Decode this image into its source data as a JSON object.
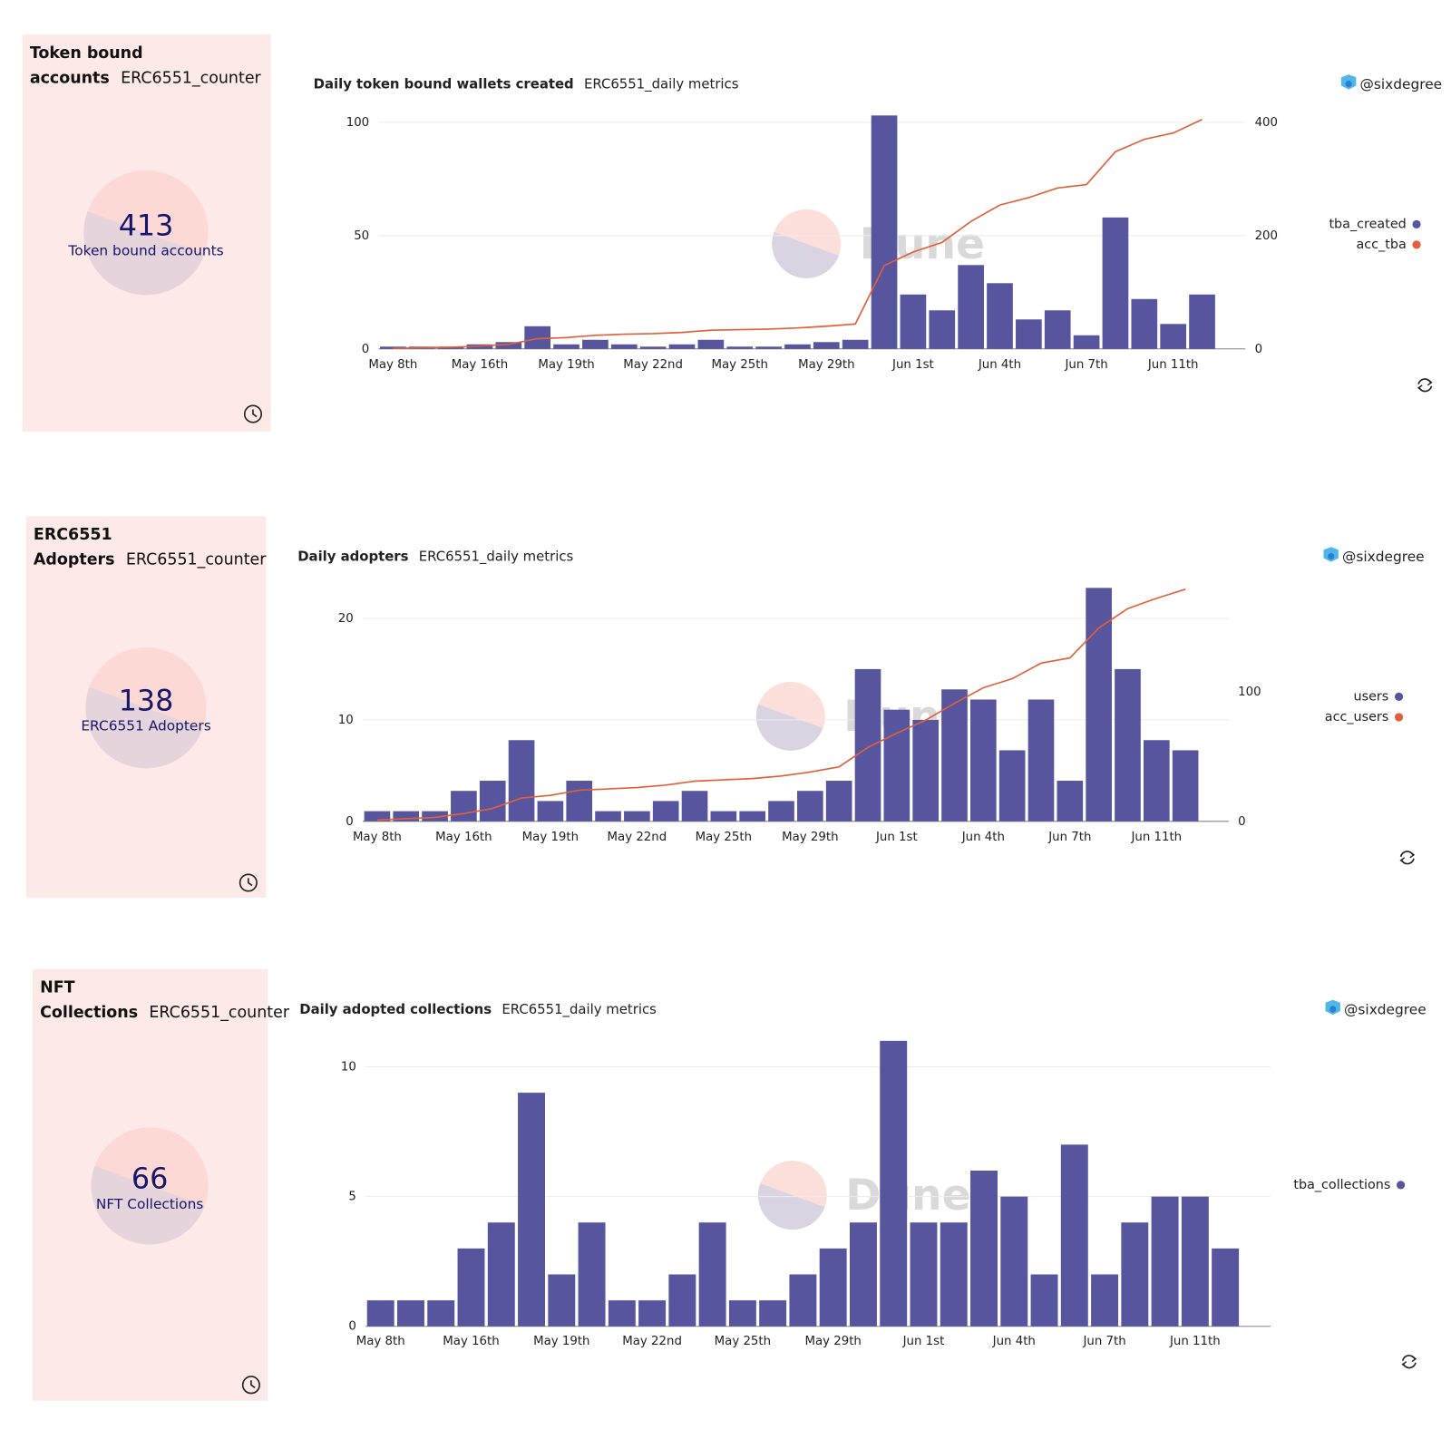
{
  "watermark": "Dune",
  "panels": [
    {
      "counter": {
        "title": "Token bound accounts",
        "query": "ERC6551_counter",
        "value": 413,
        "label": "Token bound accounts"
      },
      "chart": {
        "type": "bar",
        "title": "Daily token bound wallets created",
        "query": "ERC6551_daily metrics",
        "author": "@sixdegree",
        "categories": [
          "May 8th",
          null,
          null,
          "May 16th",
          null,
          null,
          "May 19th",
          null,
          null,
          "May 22nd",
          null,
          null,
          "May 25th",
          null,
          null,
          "May 29th",
          null,
          null,
          "Jun 1st",
          null,
          null,
          "Jun 4th",
          null,
          null,
          "Jun 7th",
          null,
          null,
          "Jun 11th",
          null,
          null
        ],
        "series": [
          {
            "name": "tba_created",
            "color": "#56559e",
            "type": "bar",
            "values": [
              1,
              1,
              1,
              2,
              3,
              10,
              2,
              4,
              2,
              1,
              2,
              4,
              1,
              1,
              2,
              3,
              4,
              103,
              24,
              17,
              37,
              29,
              13,
              17,
              6,
              58,
              22,
              11,
              24
            ]
          },
          {
            "name": "acc_tba",
            "color": "#e0603a",
            "type": "line",
            "axis": "y2",
            "values": [
              1,
              2,
              3,
              5,
              8,
              18,
              20,
              24,
              26,
              27,
              29,
              33,
              34,
              35,
              37,
              40,
              44,
              147,
              171,
              188,
              225,
              254,
              267,
              284,
              290,
              348,
              370,
              381,
              405
            ]
          }
        ],
        "ylim": [
          0,
          103
        ],
        "yticks": [
          0,
          50,
          100
        ],
        "y2lim": [
          0,
          412
        ],
        "y2ticks": [
          0,
          200,
          400
        ],
        "grid": true,
        "legend": "right"
      }
    },
    {
      "counter": {
        "title": "ERC6551 Adopters",
        "query": "ERC6551_counter",
        "value": 138,
        "label": "ERC6551 Adopters"
      },
      "chart": {
        "type": "bar",
        "title": "Daily adopters",
        "query": "ERC6551_daily metrics",
        "author": "@sixdegree",
        "categories": [
          "May 8th",
          null,
          null,
          "May 16th",
          null,
          null,
          "May 19th",
          null,
          null,
          "May 22nd",
          null,
          null,
          "May 25th",
          null,
          null,
          "May 29th",
          null,
          null,
          "Jun 1st",
          null,
          null,
          "Jun 4th",
          null,
          null,
          "Jun 7th",
          null,
          null,
          "Jun 11th",
          null,
          null
        ],
        "series": [
          {
            "name": "users",
            "color": "#56559e",
            "type": "bar",
            "values": [
              1,
              1,
              1,
              3,
              4,
              8,
              2,
              4,
              1,
              1,
              2,
              3,
              1,
              1,
              2,
              3,
              4,
              15,
              11,
              10,
              13,
              12,
              7,
              12,
              4,
              23,
              15,
              8,
              7
            ]
          },
          {
            "name": "acc_users",
            "color": "#e0603a",
            "type": "line",
            "axis": "y2",
            "values": [
              1,
              2,
              3,
              6,
              10,
              18,
              20,
              24,
              25,
              26,
              28,
              31,
              32,
              33,
              35,
              38,
              42,
              57,
              68,
              78,
              91,
              103,
              110,
              122,
              126,
              149,
              164,
              172,
              179
            ]
          }
        ],
        "ylim": [
          0,
          23
        ],
        "yticks": [
          0,
          10,
          20
        ],
        "y2lim": [
          0,
          180
        ],
        "y2ticks": [
          0,
          100
        ],
        "grid": true,
        "legend": "right"
      }
    },
    {
      "counter": {
        "title": "NFT Collections",
        "query": "ERC6551_counter",
        "value": 66,
        "label": "NFT Collections"
      },
      "chart": {
        "type": "bar",
        "title": "Daily adopted collections",
        "query": "ERC6551_daily metrics",
        "author": "@sixdegree",
        "categories": [
          "May 8th",
          null,
          null,
          "May 16th",
          null,
          null,
          "May 19th",
          null,
          null,
          "May 22nd",
          null,
          null,
          "May 25th",
          null,
          null,
          "May 29th",
          null,
          null,
          "Jun 1st",
          null,
          null,
          "Jun 4th",
          null,
          null,
          "Jun 7th",
          null,
          null,
          "Jun 11th",
          null,
          null
        ],
        "series": [
          {
            "name": "tba_collections",
            "color": "#56559e",
            "type": "bar",
            "values": [
              1,
              1,
              1,
              3,
              4,
              9,
              2,
              4,
              1,
              1,
              2,
              4,
              1,
              1,
              2,
              3,
              4,
              11,
              4,
              4,
              6,
              5,
              2,
              7,
              2,
              4,
              5,
              5,
              3
            ]
          }
        ],
        "ylim": [
          0,
          11
        ],
        "yticks": [
          0,
          5,
          10
        ],
        "grid": true,
        "legend": "right"
      }
    }
  ]
}
